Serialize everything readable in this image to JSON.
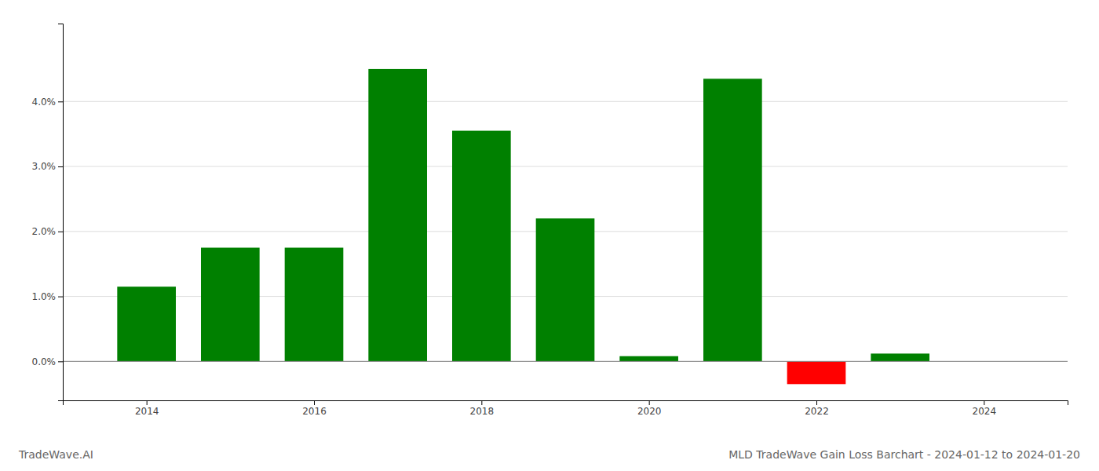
{
  "chart_data": {
    "type": "bar",
    "title": "MLD TradeWave Gain Loss Barchart - 2024-01-12 to 2024-01-20",
    "annotations": [
      "TradeWave.AI"
    ],
    "x": [
      2014,
      2015,
      2016,
      2017,
      2018,
      2019,
      2020,
      2021,
      2022,
      2023
    ],
    "values": [
      0.0115,
      0.0175,
      0.0175,
      0.045,
      0.0355,
      0.022,
      0.0008,
      0.0435,
      -0.0035,
      0.0012
    ],
    "colors": [
      "#008000",
      "#008000",
      "#008000",
      "#008000",
      "#008000",
      "#008000",
      "#008000",
      "#008000",
      "#ff0000",
      "#008000"
    ],
    "xlim": [
      2013.0,
      2025.0
    ],
    "xticks": [
      2014,
      2016,
      2018,
      2020,
      2022,
      2024
    ],
    "ylim": [
      -0.006,
      0.052
    ],
    "yticks": [
      {
        "value": 0.0,
        "label": "0.0%"
      },
      {
        "value": 0.01,
        "label": "1.0%"
      },
      {
        "value": 0.02,
        "label": "2.0%"
      },
      {
        "value": 0.03,
        "label": "3.0%"
      },
      {
        "value": 0.04,
        "label": "4.0%"
      }
    ],
    "grid": true
  }
}
